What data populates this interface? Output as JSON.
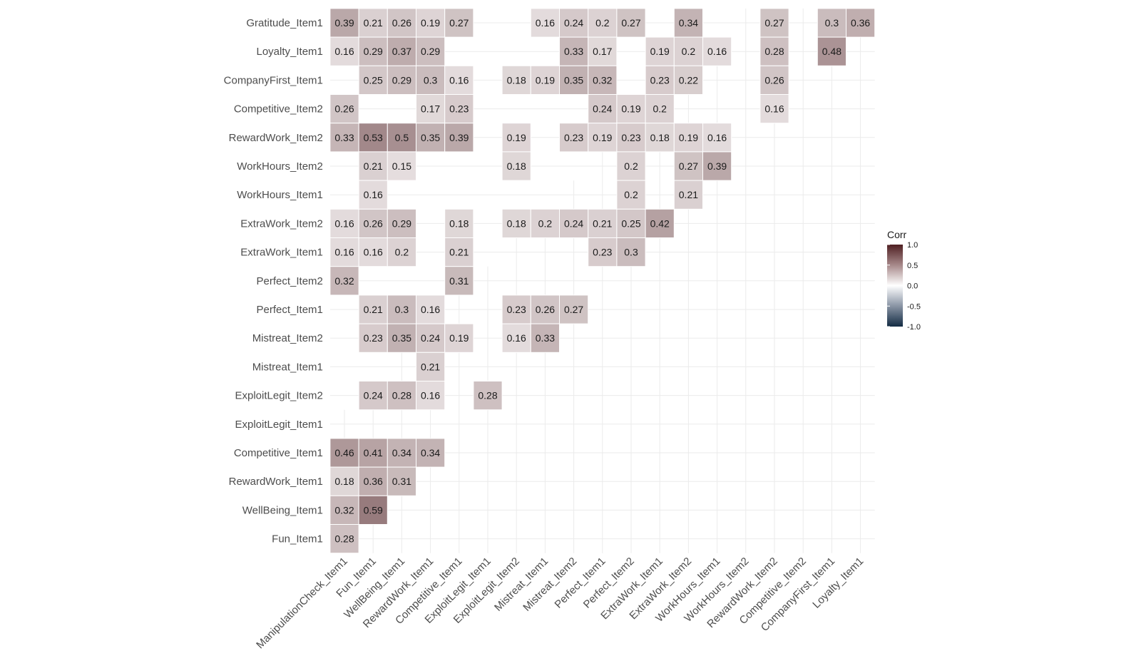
{
  "chart_data": {
    "type": "heatmap",
    "title": "",
    "xlabel": "",
    "ylabel": "",
    "x_categories": [
      "ManipulationCheck_Item1",
      "Fun_Item1",
      "WellBeing_Item1",
      "RewardWork_Item1",
      "Competitive_Item1",
      "ExploitLegit_Item1",
      "ExploitLegit_Item2",
      "Mistreat_Item1",
      "Mistreat_Item2",
      "Perfect_Item1",
      "Perfect_Item2",
      "ExtraWork_Item1",
      "ExtraWork_Item2",
      "WorkHours_Item1",
      "WorkHours_Item2",
      "RewardWork_Item2",
      "Competitive_Item2",
      "CompanyFirst_Item1",
      "Loyalty_Item1"
    ],
    "y_categories": [
      "Gratitude_Item1",
      "Loyalty_Item1",
      "CompanyFirst_Item1",
      "Competitive_Item2",
      "RewardWork_Item2",
      "WorkHours_Item2",
      "WorkHours_Item1",
      "ExtraWork_Item2",
      "ExtraWork_Item1",
      "Perfect_Item2",
      "Perfect_Item1",
      "Mistreat_Item2",
      "Mistreat_Item1",
      "ExploitLegit_Item2",
      "ExploitLegit_Item1",
      "Competitive_Item1",
      "RewardWork_Item1",
      "WellBeing_Item1",
      "Fun_Item1"
    ],
    "cells": [
      {
        "x": "ManipulationCheck_Item1",
        "y": "Gratitude_Item1",
        "value": 0.39
      },
      {
        "x": "Fun_Item1",
        "y": "Gratitude_Item1",
        "value": 0.21
      },
      {
        "x": "WellBeing_Item1",
        "y": "Gratitude_Item1",
        "value": 0.26
      },
      {
        "x": "RewardWork_Item1",
        "y": "Gratitude_Item1",
        "value": 0.19
      },
      {
        "x": "Competitive_Item1",
        "y": "Gratitude_Item1",
        "value": 0.27
      },
      {
        "x": "Mistreat_Item1",
        "y": "Gratitude_Item1",
        "value": 0.16
      },
      {
        "x": "Mistreat_Item2",
        "y": "Gratitude_Item1",
        "value": 0.24
      },
      {
        "x": "Perfect_Item1",
        "y": "Gratitude_Item1",
        "value": 0.2
      },
      {
        "x": "Perfect_Item2",
        "y": "Gratitude_Item1",
        "value": 0.27
      },
      {
        "x": "ExtraWork_Item2",
        "y": "Gratitude_Item1",
        "value": 0.34
      },
      {
        "x": "RewardWork_Item2",
        "y": "Gratitude_Item1",
        "value": 0.27
      },
      {
        "x": "CompanyFirst_Item1",
        "y": "Gratitude_Item1",
        "value": 0.3
      },
      {
        "x": "Loyalty_Item1",
        "y": "Gratitude_Item1",
        "value": 0.36
      },
      {
        "x": "ManipulationCheck_Item1",
        "y": "Loyalty_Item1",
        "value": 0.16
      },
      {
        "x": "Fun_Item1",
        "y": "Loyalty_Item1",
        "value": 0.29
      },
      {
        "x": "WellBeing_Item1",
        "y": "Loyalty_Item1",
        "value": 0.37
      },
      {
        "x": "RewardWork_Item1",
        "y": "Loyalty_Item1",
        "value": 0.29
      },
      {
        "x": "Mistreat_Item2",
        "y": "Loyalty_Item1",
        "value": 0.33
      },
      {
        "x": "Perfect_Item1",
        "y": "Loyalty_Item1",
        "value": 0.17
      },
      {
        "x": "ExtraWork_Item1",
        "y": "Loyalty_Item1",
        "value": 0.19
      },
      {
        "x": "ExtraWork_Item2",
        "y": "Loyalty_Item1",
        "value": 0.2
      },
      {
        "x": "WorkHours_Item1",
        "y": "Loyalty_Item1",
        "value": 0.16
      },
      {
        "x": "RewardWork_Item2",
        "y": "Loyalty_Item1",
        "value": 0.28
      },
      {
        "x": "CompanyFirst_Item1",
        "y": "Loyalty_Item1",
        "value": 0.48
      },
      {
        "x": "Fun_Item1",
        "y": "CompanyFirst_Item1",
        "value": 0.25
      },
      {
        "x": "WellBeing_Item1",
        "y": "CompanyFirst_Item1",
        "value": 0.29
      },
      {
        "x": "RewardWork_Item1",
        "y": "CompanyFirst_Item1",
        "value": 0.3
      },
      {
        "x": "Competitive_Item1",
        "y": "CompanyFirst_Item1",
        "value": 0.16
      },
      {
        "x": "ExploitLegit_Item2",
        "y": "CompanyFirst_Item1",
        "value": 0.18
      },
      {
        "x": "Mistreat_Item1",
        "y": "CompanyFirst_Item1",
        "value": 0.19
      },
      {
        "x": "Mistreat_Item2",
        "y": "CompanyFirst_Item1",
        "value": 0.35
      },
      {
        "x": "Perfect_Item1",
        "y": "CompanyFirst_Item1",
        "value": 0.32
      },
      {
        "x": "ExtraWork_Item1",
        "y": "CompanyFirst_Item1",
        "value": 0.23
      },
      {
        "x": "ExtraWork_Item2",
        "y": "CompanyFirst_Item1",
        "value": 0.22
      },
      {
        "x": "RewardWork_Item2",
        "y": "CompanyFirst_Item1",
        "value": 0.26
      },
      {
        "x": "ManipulationCheck_Item1",
        "y": "Competitive_Item2",
        "value": 0.26
      },
      {
        "x": "RewardWork_Item1",
        "y": "Competitive_Item2",
        "value": 0.17
      },
      {
        "x": "Competitive_Item1",
        "y": "Competitive_Item2",
        "value": 0.23
      },
      {
        "x": "Perfect_Item1",
        "y": "Competitive_Item2",
        "value": 0.24
      },
      {
        "x": "Perfect_Item2",
        "y": "Competitive_Item2",
        "value": 0.19
      },
      {
        "x": "ExtraWork_Item1",
        "y": "Competitive_Item2",
        "value": 0.2
      },
      {
        "x": "RewardWork_Item2",
        "y": "Competitive_Item2",
        "value": 0.16
      },
      {
        "x": "ManipulationCheck_Item1",
        "y": "RewardWork_Item2",
        "value": 0.33
      },
      {
        "x": "Fun_Item1",
        "y": "RewardWork_Item2",
        "value": 0.53
      },
      {
        "x": "WellBeing_Item1",
        "y": "RewardWork_Item2",
        "value": 0.5
      },
      {
        "x": "RewardWork_Item1",
        "y": "RewardWork_Item2",
        "value": 0.35
      },
      {
        "x": "Competitive_Item1",
        "y": "RewardWork_Item2",
        "value": 0.39
      },
      {
        "x": "ExploitLegit_Item2",
        "y": "RewardWork_Item2",
        "value": 0.19
      },
      {
        "x": "Mistreat_Item2",
        "y": "RewardWork_Item2",
        "value": 0.23
      },
      {
        "x": "Perfect_Item1",
        "y": "RewardWork_Item2",
        "value": 0.19
      },
      {
        "x": "Perfect_Item2",
        "y": "RewardWork_Item2",
        "value": 0.23
      },
      {
        "x": "ExtraWork_Item1",
        "y": "RewardWork_Item2",
        "value": 0.18
      },
      {
        "x": "ExtraWork_Item2",
        "y": "RewardWork_Item2",
        "value": 0.19
      },
      {
        "x": "WorkHours_Item1",
        "y": "RewardWork_Item2",
        "value": 0.16
      },
      {
        "x": "Fun_Item1",
        "y": "WorkHours_Item2",
        "value": 0.21
      },
      {
        "x": "WellBeing_Item1",
        "y": "WorkHours_Item2",
        "value": 0.15
      },
      {
        "x": "ExploitLegit_Item2",
        "y": "WorkHours_Item2",
        "value": 0.18
      },
      {
        "x": "Perfect_Item2",
        "y": "WorkHours_Item2",
        "value": 0.2
      },
      {
        "x": "ExtraWork_Item2",
        "y": "WorkHours_Item2",
        "value": 0.27
      },
      {
        "x": "WorkHours_Item1",
        "y": "WorkHours_Item2",
        "value": 0.39
      },
      {
        "x": "Fun_Item1",
        "y": "WorkHours_Item1",
        "value": 0.16
      },
      {
        "x": "Perfect_Item2",
        "y": "WorkHours_Item1",
        "value": 0.2
      },
      {
        "x": "ExtraWork_Item2",
        "y": "WorkHours_Item1",
        "value": 0.21
      },
      {
        "x": "ManipulationCheck_Item1",
        "y": "ExtraWork_Item2",
        "value": 0.16
      },
      {
        "x": "Fun_Item1",
        "y": "ExtraWork_Item2",
        "value": 0.26
      },
      {
        "x": "WellBeing_Item1",
        "y": "ExtraWork_Item2",
        "value": 0.29
      },
      {
        "x": "Competitive_Item1",
        "y": "ExtraWork_Item2",
        "value": 0.18
      },
      {
        "x": "ExploitLegit_Item2",
        "y": "ExtraWork_Item2",
        "value": 0.18
      },
      {
        "x": "Mistreat_Item1",
        "y": "ExtraWork_Item2",
        "value": 0.2
      },
      {
        "x": "Mistreat_Item2",
        "y": "ExtraWork_Item2",
        "value": 0.24
      },
      {
        "x": "Perfect_Item1",
        "y": "ExtraWork_Item2",
        "value": 0.21
      },
      {
        "x": "Perfect_Item2",
        "y": "ExtraWork_Item2",
        "value": 0.25
      },
      {
        "x": "ExtraWork_Item1",
        "y": "ExtraWork_Item2",
        "value": 0.42
      },
      {
        "x": "ManipulationCheck_Item1",
        "y": "ExtraWork_Item1",
        "value": 0.16
      },
      {
        "x": "Fun_Item1",
        "y": "ExtraWork_Item1",
        "value": 0.16
      },
      {
        "x": "WellBeing_Item1",
        "y": "ExtraWork_Item1",
        "value": 0.2
      },
      {
        "x": "Competitive_Item1",
        "y": "ExtraWork_Item1",
        "value": 0.21
      },
      {
        "x": "Perfect_Item1",
        "y": "ExtraWork_Item1",
        "value": 0.23
      },
      {
        "x": "Perfect_Item2",
        "y": "ExtraWork_Item1",
        "value": 0.3
      },
      {
        "x": "ManipulationCheck_Item1",
        "y": "Perfect_Item2",
        "value": 0.32
      },
      {
        "x": "Competitive_Item1",
        "y": "Perfect_Item2",
        "value": 0.31
      },
      {
        "x": "Fun_Item1",
        "y": "Perfect_Item1",
        "value": 0.21
      },
      {
        "x": "WellBeing_Item1",
        "y": "Perfect_Item1",
        "value": 0.3
      },
      {
        "x": "RewardWork_Item1",
        "y": "Perfect_Item1",
        "value": 0.16
      },
      {
        "x": "ExploitLegit_Item2",
        "y": "Perfect_Item1",
        "value": 0.23
      },
      {
        "x": "Mistreat_Item1",
        "y": "Perfect_Item1",
        "value": 0.26
      },
      {
        "x": "Mistreat_Item2",
        "y": "Perfect_Item1",
        "value": 0.27
      },
      {
        "x": "Fun_Item1",
        "y": "Mistreat_Item2",
        "value": 0.23
      },
      {
        "x": "WellBeing_Item1",
        "y": "Mistreat_Item2",
        "value": 0.35
      },
      {
        "x": "RewardWork_Item1",
        "y": "Mistreat_Item2",
        "value": 0.24
      },
      {
        "x": "Competitive_Item1",
        "y": "Mistreat_Item2",
        "value": 0.19
      },
      {
        "x": "ExploitLegit_Item2",
        "y": "Mistreat_Item2",
        "value": 0.16
      },
      {
        "x": "Mistreat_Item1",
        "y": "Mistreat_Item2",
        "value": 0.33
      },
      {
        "x": "RewardWork_Item1",
        "y": "Mistreat_Item1",
        "value": 0.21
      },
      {
        "x": "Fun_Item1",
        "y": "ExploitLegit_Item2",
        "value": 0.24
      },
      {
        "x": "WellBeing_Item1",
        "y": "ExploitLegit_Item2",
        "value": 0.28
      },
      {
        "x": "RewardWork_Item1",
        "y": "ExploitLegit_Item2",
        "value": 0.16
      },
      {
        "x": "ExploitLegit_Item1",
        "y": "ExploitLegit_Item2",
        "value": 0.28
      },
      {
        "x": "ManipulationCheck_Item1",
        "y": "Competitive_Item1",
        "value": 0.46
      },
      {
        "x": "Fun_Item1",
        "y": "Competitive_Item1",
        "value": 0.41
      },
      {
        "x": "WellBeing_Item1",
        "y": "Competitive_Item1",
        "value": 0.34
      },
      {
        "x": "RewardWork_Item1",
        "y": "Competitive_Item1",
        "value": 0.34
      },
      {
        "x": "ManipulationCheck_Item1",
        "y": "RewardWork_Item1",
        "value": 0.18
      },
      {
        "x": "Fun_Item1",
        "y": "RewardWork_Item1",
        "value": 0.36
      },
      {
        "x": "WellBeing_Item1",
        "y": "RewardWork_Item1",
        "value": 0.31
      },
      {
        "x": "ManipulationCheck_Item1",
        "y": "WellBeing_Item1",
        "value": 0.32
      },
      {
        "x": "Fun_Item1",
        "y": "WellBeing_Item1",
        "value": 0.59
      },
      {
        "x": "ManipulationCheck_Item1",
        "y": "Fun_Item1",
        "value": 0.28
      }
    ],
    "legend": {
      "title": "Corr",
      "placement": "right",
      "ticks": [
        "1.0",
        "0.5",
        "0.0",
        "-0.5",
        "-1.0"
      ],
      "range": [
        -1,
        1
      ],
      "colors": {
        "low": "#132b43",
        "mid": "#ffffff",
        "high": "#4f1f22"
      }
    },
    "grid": true
  }
}
